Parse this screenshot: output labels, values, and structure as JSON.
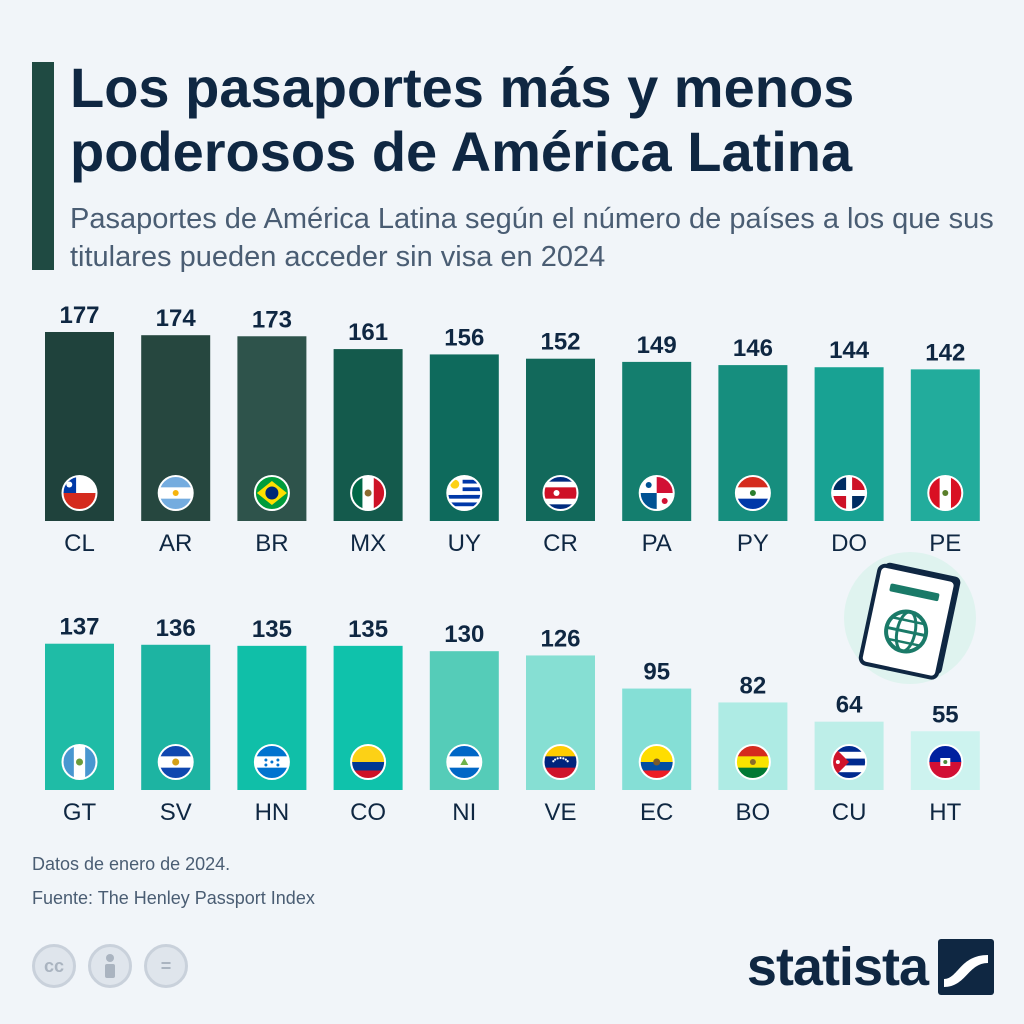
{
  "header": {
    "title": "Los pasaportes más y menos poderosos de América Latina",
    "subtitle": "Pasaportes de América Latina según el número de países a los que sus titulares pueden acceder sin visa en 2024"
  },
  "chart_data": {
    "type": "bar",
    "title": "Los pasaportes más y menos poderosos de América Latina",
    "subtitle": "Pasaportes de América Latina según el número de países a los que sus titulares pueden acceder sin visa en 2024",
    "xlabel": "",
    "ylabel": "",
    "categories": [
      "CL",
      "AR",
      "BR",
      "MX",
      "UY",
      "CR",
      "PA",
      "PY",
      "DO",
      "PE",
      "GT",
      "SV",
      "HN",
      "CO",
      "NI",
      "VE",
      "EC",
      "BO",
      "CU",
      "HT"
    ],
    "values": [
      177,
      174,
      173,
      161,
      156,
      152,
      149,
      146,
      144,
      142,
      137,
      136,
      135,
      135,
      130,
      126,
      95,
      82,
      64,
      55
    ],
    "ylim": [
      0,
      177
    ],
    "rows": 2,
    "bars_per_row": 10,
    "colors": [
      "#1f423c",
      "#26473f",
      "#2e534b",
      "#145a4c",
      "#0e6a5c",
      "#12695b",
      "#147e6e",
      "#168e7e",
      "#18a293",
      "#22ac9c",
      "#1fbca6",
      "#1db4a2",
      "#10bfa8",
      "#0fc2ab",
      "#55ccb8",
      "#86dfd3",
      "#85dfd6",
      "#aeebe4",
      "#bdeee8",
      "#cdf3ef"
    ],
    "flags": [
      "chile-flag",
      "argentina-flag",
      "brazil-flag",
      "mexico-flag",
      "uruguay-flag",
      "costa-rica-flag",
      "panama-flag",
      "paraguay-flag",
      "dominican-republic-flag",
      "peru-flag",
      "guatemala-flag",
      "el-salvador-flag",
      "honduras-flag",
      "colombia-flag",
      "nicaragua-flag",
      "venezuela-flag",
      "ecuador-flag",
      "bolivia-flag",
      "cuba-flag",
      "haiti-flag"
    ]
  },
  "footer": {
    "note": "Datos de enero de 2024.",
    "source": "Fuente: The Henley Passport Index",
    "license_icons": [
      "creative-commons-icon",
      "attribution-icon",
      "no-derivatives-icon"
    ],
    "cc_symbol": "cc",
    "nd_symbol": "=",
    "brand": "statista"
  }
}
